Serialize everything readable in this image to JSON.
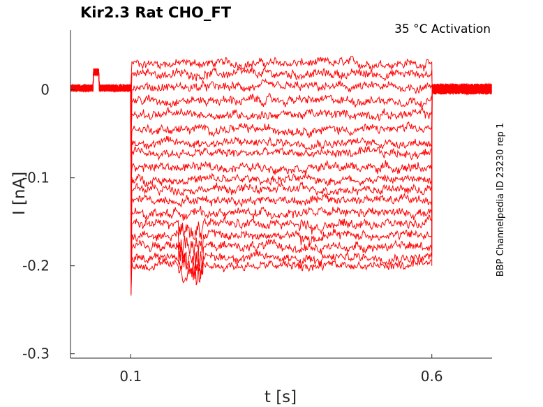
{
  "chart_data": {
    "type": "line",
    "title": "Kir2.3  Rat  CHO_FT",
    "condition": "35 °C  Activation",
    "source_label": "BBP Channelpedia ID 23230 rep 1",
    "xlabel": "t [s]",
    "ylabel": "I [nA]",
    "xlim": [
      0.0,
      0.7
    ],
    "ylim": [
      -0.305,
      0.068
    ],
    "x_ticks": [
      0.1,
      0.6
    ],
    "x_tick_labels": [
      "0.1",
      "0.6"
    ],
    "y_ticks": [
      0,
      -0.1,
      -0.2,
      -0.3
    ],
    "y_tick_labels": [
      "0",
      "-0.1",
      "-0.2",
      "-0.3"
    ],
    "grid": false,
    "line_color": "#ff0000",
    "step_start_s": 0.1,
    "step_end_s": 0.6,
    "step_levels_nA": [
      0.03,
      0.018,
      0.003,
      -0.012,
      -0.028,
      -0.045,
      -0.06,
      -0.072,
      -0.088,
      -0.102,
      -0.113,
      -0.125,
      -0.14,
      -0.152,
      -0.165,
      -0.178,
      -0.19,
      -0.2
    ]
  }
}
